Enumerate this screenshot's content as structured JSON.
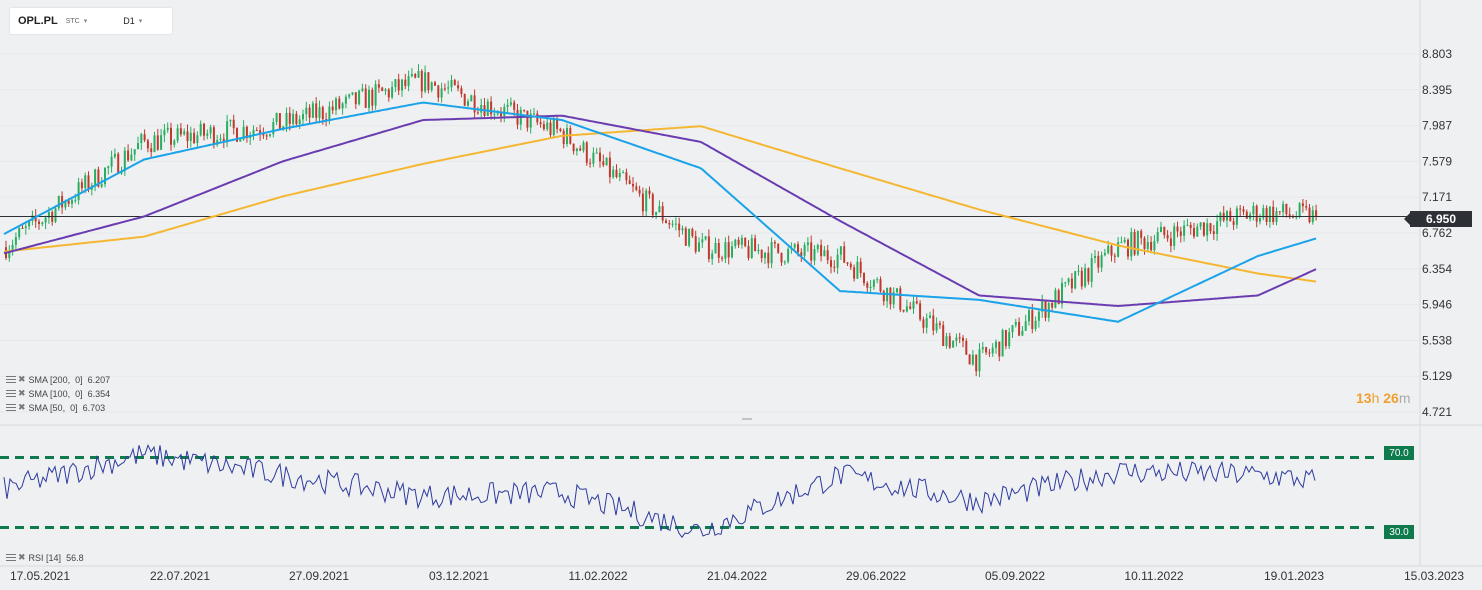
{
  "header": {
    "symbol": "OPL.PL",
    "symbol_sub": "STC",
    "caret_icon": "▾",
    "timeframe": "D1",
    "tf_caret_icon": "▾"
  },
  "price_panel": {
    "last_price_label": "6.950",
    "timer": {
      "h_num": "13",
      "h_unit": "h",
      "m_num": "26",
      "m_unit": "m"
    }
  },
  "indicators": {
    "sma200": "SMA [200,  0]  6.207",
    "sma100": "SMA [100,  0]  6.354",
    "sma50": "SMA [50,  0]  6.703",
    "rsi": "RSI [14]  56.8",
    "remove_icon": "✖",
    "settings_icon": "list-icon"
  },
  "rsi_levels": {
    "upper": "70.0",
    "lower": "30.0"
  },
  "colors": {
    "up": "#27ae60",
    "down": "#c0392b",
    "sma50": "#1aa3e8",
    "sma100": "#6a3cb0",
    "sma200": "#f5b731",
    "rsi": "#2e3a9e",
    "level": "#0f7a4b"
  },
  "chart_data": {
    "type": "line",
    "title": "OPL.PL D1",
    "y_ticks": [
      "8.803",
      "8.395",
      "7.987",
      "7.579",
      "7.171",
      "6.762",
      "6.354",
      "5.946",
      "5.538",
      "5.129",
      "4.721"
    ],
    "ylim": [
      4.721,
      8.803
    ],
    "x_ticks": [
      "17.05.2021",
      "22.07.2021",
      "27.09.2021",
      "03.12.2021",
      "11.02.2022",
      "21.04.2022",
      "29.06.2022",
      "05.09.2022",
      "10.11.2022",
      "19.01.2023",
      "15.03.2023"
    ],
    "last_price": 6.95,
    "price_keypoints": [
      [
        "17.05.2021",
        6.6
      ],
      [
        "22.07.2021",
        7.8
      ],
      [
        "27.09.2021",
        8.0
      ],
      [
        "03.12.2021",
        8.5
      ],
      [
        "11.02.2022",
        7.9
      ],
      [
        "21.04.2022",
        6.6
      ],
      [
        "29.06.2022",
        6.5
      ],
      [
        "05.09.2022",
        5.3
      ],
      [
        "10.11.2022",
        6.6
      ],
      [
        "19.01.2023",
        7.0
      ],
      [
        "last",
        6.95
      ]
    ],
    "series": [
      {
        "name": "SMA [200, 0]",
        "last_value": 6.207,
        "values": [
          6.55,
          6.72,
          7.18,
          7.55,
          7.87,
          7.98,
          7.5,
          7.03,
          6.62,
          6.3,
          6.207
        ]
      },
      {
        "name": "SMA [100, 0]",
        "last_value": 6.354,
        "values": [
          6.53,
          6.95,
          7.58,
          8.05,
          8.1,
          7.8,
          6.9,
          6.05,
          5.93,
          6.05,
          6.354
        ]
      },
      {
        "name": "SMA [50, 0]",
        "last_value": 6.703,
        "values": [
          6.75,
          7.6,
          7.95,
          8.25,
          8.05,
          7.5,
          6.1,
          6.0,
          5.75,
          6.5,
          6.703
        ]
      }
    ],
    "rsi": {
      "name": "RSI [14]",
      "last_value": 56.8,
      "levels": [
        70,
        30
      ],
      "ylim": [
        20,
        80
      ],
      "keypoints": [
        [
          "17.05.2021",
          52
        ],
        [
          "22.07.2021",
          72
        ],
        [
          "27.09.2021",
          60
        ],
        [
          "03.12.2021",
          48
        ],
        [
          "11.02.2022",
          50
        ],
        [
          "21.04.2022",
          28
        ],
        [
          "29.06.2022",
          60
        ],
        [
          "05.09.2022",
          45
        ],
        [
          "10.11.2022",
          62
        ],
        [
          "19.01.2023",
          60
        ],
        [
          "last",
          56.8
        ]
      ]
    }
  }
}
